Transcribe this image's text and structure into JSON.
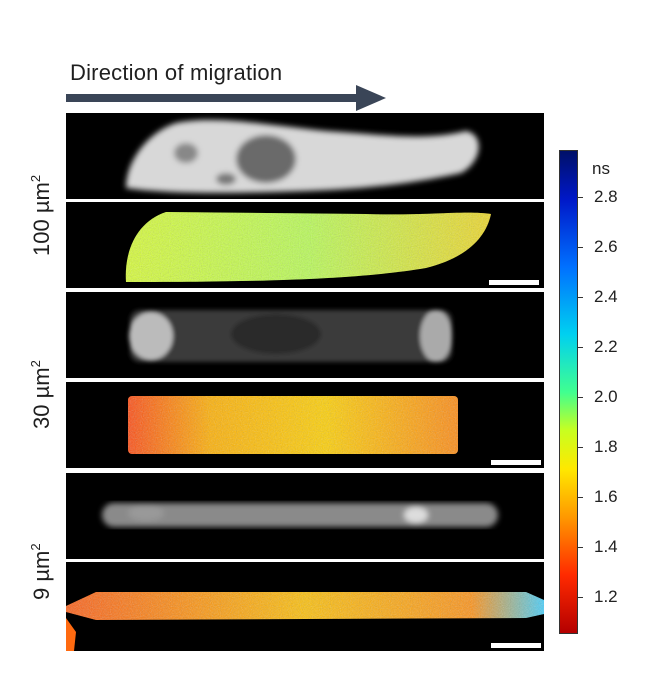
{
  "header": {
    "title": "Direction of migration"
  },
  "rows": [
    {
      "label": "100 µm",
      "exponent": "2"
    },
    {
      "label": "30 µm",
      "exponent": "2"
    },
    {
      "label": "9 µm",
      "exponent": "2"
    }
  ],
  "colorbar": {
    "unit": "ns",
    "ticks": [
      "2.8",
      "2.6",
      "2.4",
      "2.2",
      "2.0",
      "1.8",
      "1.6",
      "1.4",
      "1.2"
    ],
    "colors": {
      "high": "#001068",
      "mid": "#40ff90",
      "low": "#b40000"
    }
  }
}
